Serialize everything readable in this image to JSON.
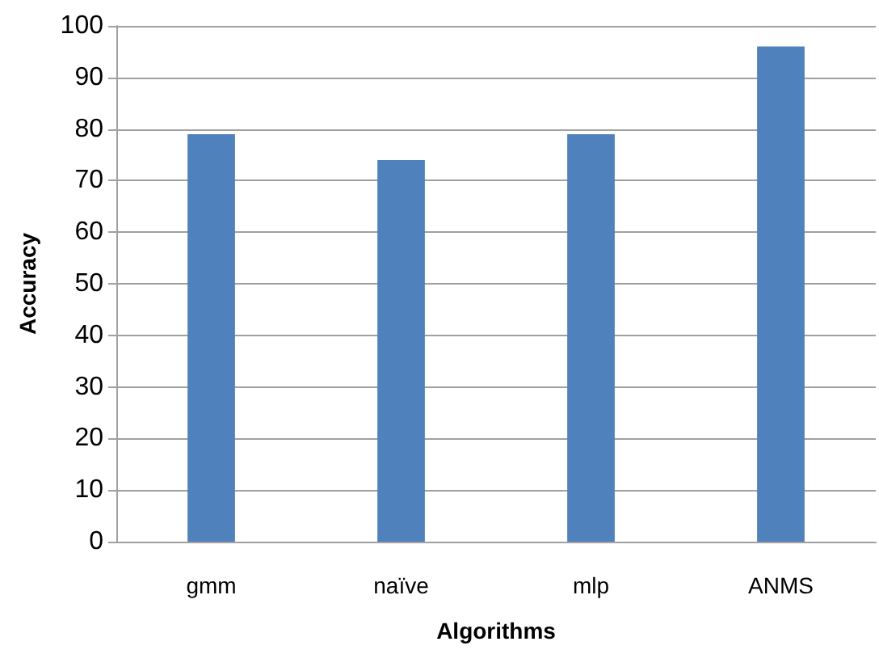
{
  "chart_data": {
    "type": "bar",
    "xlabel": "Algorithms",
    "ylabel": "Accuracy",
    "categories": [
      "gmm",
      "naïve",
      "mlp",
      "ANMS"
    ],
    "values": [
      79,
      74,
      79,
      96
    ],
    "color": "#4f81bd",
    "ylim": [
      0,
      100
    ],
    "yticks": [
      0,
      10,
      20,
      30,
      40,
      50,
      60,
      70,
      80,
      90,
      100
    ],
    "grid": "y"
  }
}
